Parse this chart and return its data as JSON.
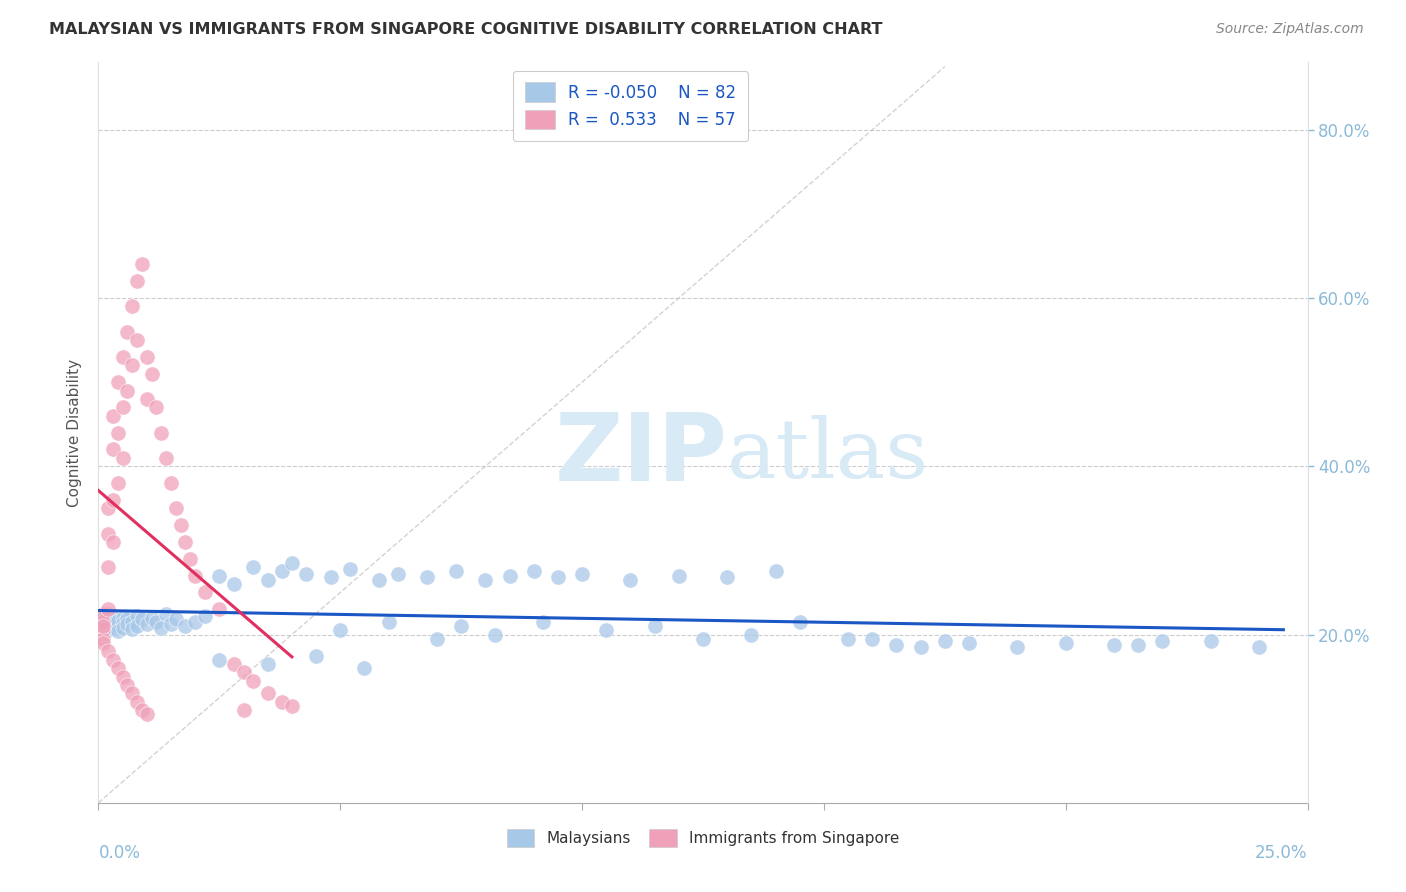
{
  "title": "MALAYSIAN VS IMMIGRANTS FROM SINGAPORE COGNITIVE DISABILITY CORRELATION CHART",
  "source": "Source: ZipAtlas.com",
  "ylabel": "Cognitive Disability",
  "right_yticklabels": [
    "20.0%",
    "40.0%",
    "60.0%",
    "80.0%"
  ],
  "right_ytick_vals": [
    0.2,
    0.4,
    0.6,
    0.8
  ],
  "blue_color": "#A8C8E8",
  "pink_color": "#F0A0B8",
  "blue_line_color": "#1A56C4",
  "pink_line_color": "#E03060",
  "gray_line_color": "#C8C8C8",
  "tick_color": "#8BBAD8",
  "watermark_color": "#D8EAF5",
  "background_color": "#FFFFFF",
  "xmin": 0.0,
  "xmax": 0.25,
  "ymin": 0.0,
  "ymax": 0.88,
  "blue_R": -0.05,
  "blue_N": 82,
  "pink_R": 0.533,
  "pink_N": 57,
  "blue_scatter_x": [
    0.001,
    0.001,
    0.002,
    0.002,
    0.002,
    0.003,
    0.003,
    0.003,
    0.003,
    0.004,
    0.004,
    0.004,
    0.005,
    0.005,
    0.005,
    0.006,
    0.006,
    0.007,
    0.007,
    0.008,
    0.008,
    0.009,
    0.01,
    0.011,
    0.012,
    0.013,
    0.014,
    0.015,
    0.016,
    0.018,
    0.02,
    0.022,
    0.025,
    0.028,
    0.032,
    0.035,
    0.038,
    0.04,
    0.043,
    0.048,
    0.052,
    0.058,
    0.062,
    0.068,
    0.074,
    0.08,
    0.085,
    0.09,
    0.095,
    0.1,
    0.11,
    0.12,
    0.13,
    0.14,
    0.155,
    0.165,
    0.175,
    0.19,
    0.2,
    0.215,
    0.23,
    0.24,
    0.05,
    0.06,
    0.07,
    0.075,
    0.082,
    0.092,
    0.105,
    0.115,
    0.125,
    0.135,
    0.145,
    0.16,
    0.17,
    0.18,
    0.21,
    0.22,
    0.025,
    0.035,
    0.045,
    0.055
  ],
  "blue_scatter_y": [
    0.21,
    0.22,
    0.215,
    0.205,
    0.225,
    0.212,
    0.218,
    0.208,
    0.222,
    0.21,
    0.216,
    0.204,
    0.22,
    0.214,
    0.208,
    0.218,
    0.212,
    0.215,
    0.207,
    0.222,
    0.21,
    0.218,
    0.212,
    0.22,
    0.215,
    0.208,
    0.225,
    0.212,
    0.218,
    0.21,
    0.215,
    0.222,
    0.27,
    0.26,
    0.28,
    0.265,
    0.275,
    0.285,
    0.272,
    0.268,
    0.278,
    0.265,
    0.272,
    0.268,
    0.275,
    0.265,
    0.27,
    0.275,
    0.268,
    0.272,
    0.265,
    0.27,
    0.268,
    0.275,
    0.195,
    0.188,
    0.192,
    0.185,
    0.19,
    0.188,
    0.192,
    0.185,
    0.205,
    0.215,
    0.195,
    0.21,
    0.2,
    0.215,
    0.205,
    0.21,
    0.195,
    0.2,
    0.215,
    0.195,
    0.185,
    0.19,
    0.188,
    0.192,
    0.17,
    0.165,
    0.175,
    0.16
  ],
  "pink_scatter_x": [
    0.001,
    0.001,
    0.001,
    0.001,
    0.001,
    0.002,
    0.002,
    0.002,
    0.002,
    0.003,
    0.003,
    0.003,
    0.003,
    0.004,
    0.004,
    0.004,
    0.005,
    0.005,
    0.005,
    0.006,
    0.006,
    0.007,
    0.007,
    0.008,
    0.008,
    0.009,
    0.01,
    0.01,
    0.011,
    0.012,
    0.013,
    0.014,
    0.015,
    0.016,
    0.017,
    0.018,
    0.019,
    0.02,
    0.022,
    0.025,
    0.028,
    0.03,
    0.032,
    0.035,
    0.038,
    0.04,
    0.001,
    0.002,
    0.003,
    0.004,
    0.005,
    0.006,
    0.007,
    0.008,
    0.009,
    0.01,
    0.03
  ],
  "pink_scatter_y": [
    0.205,
    0.215,
    0.195,
    0.225,
    0.21,
    0.35,
    0.32,
    0.28,
    0.23,
    0.46,
    0.42,
    0.36,
    0.31,
    0.5,
    0.44,
    0.38,
    0.53,
    0.47,
    0.41,
    0.56,
    0.49,
    0.59,
    0.52,
    0.62,
    0.55,
    0.64,
    0.53,
    0.48,
    0.51,
    0.47,
    0.44,
    0.41,
    0.38,
    0.35,
    0.33,
    0.31,
    0.29,
    0.27,
    0.25,
    0.23,
    0.165,
    0.155,
    0.145,
    0.13,
    0.12,
    0.115,
    0.19,
    0.18,
    0.17,
    0.16,
    0.15,
    0.14,
    0.13,
    0.12,
    0.11,
    0.105,
    0.11
  ]
}
